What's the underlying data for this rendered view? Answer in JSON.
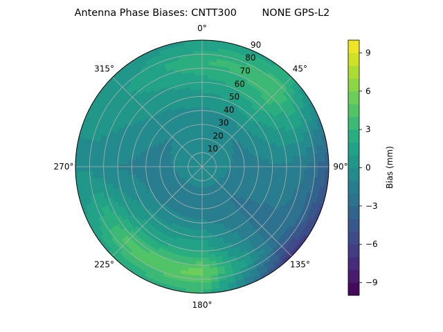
{
  "chart_data": {
    "type": "heatmap",
    "subtype": "polar-contour",
    "title": "Antenna Phase Biases: CNTT300        NONE GPS-L2",
    "angular_ticks": [
      {
        "deg": 0,
        "label": "0°"
      },
      {
        "deg": 45,
        "label": "45°"
      },
      {
        "deg": 90,
        "label": "90°"
      },
      {
        "deg": 135,
        "label": "135°"
      },
      {
        "deg": 180,
        "label": "180°"
      },
      {
        "deg": 225,
        "label": "225°"
      },
      {
        "deg": 270,
        "label": "270°"
      },
      {
        "deg": 315,
        "label": "315°"
      }
    ],
    "radial_ticks": [
      10,
      20,
      30,
      40,
      50,
      60,
      70,
      80,
      90
    ],
    "radial_range": [
      0,
      90
    ],
    "azimuth_direction": "clockwise",
    "azimuth_zero": "top",
    "grid": true,
    "colorbar": {
      "label": "Bias (mm)",
      "range": [
        -10,
        10
      ],
      "ticks": [
        -9,
        -6,
        -3,
        0,
        3,
        6,
        9
      ],
      "tick_labels": [
        "−9",
        "−6",
        "−3",
        "0",
        "3",
        "6",
        "9"
      ],
      "levels": 20,
      "colormap": "viridis"
    },
    "field_samples": {
      "description": "bias in mm by azimuth (deg) and zenith radius (deg)",
      "azimuth_deg": [
        0,
        45,
        90,
        135,
        180,
        225,
        270,
        315
      ],
      "radius_deg": [
        0,
        30,
        60,
        75,
        90
      ],
      "values": [
        [
          0.0,
          -1.0,
          1.5,
          3.0,
          1.0
        ],
        [
          0.0,
          -1.0,
          2.5,
          4.0,
          2.0
        ],
        [
          0.0,
          -1.5,
          -1.0,
          -2.0,
          -4.0
        ],
        [
          0.0,
          -2.0,
          -2.5,
          -3.0,
          -7.0
        ],
        [
          0.0,
          -2.0,
          2.0,
          5.5,
          3.0
        ],
        [
          0.0,
          -2.0,
          1.5,
          4.5,
          2.0
        ],
        [
          0.0,
          -1.5,
          -1.0,
          -0.5,
          0.0
        ],
        [
          0.0,
          -1.0,
          0.5,
          1.0,
          0.0
        ]
      ]
    }
  }
}
